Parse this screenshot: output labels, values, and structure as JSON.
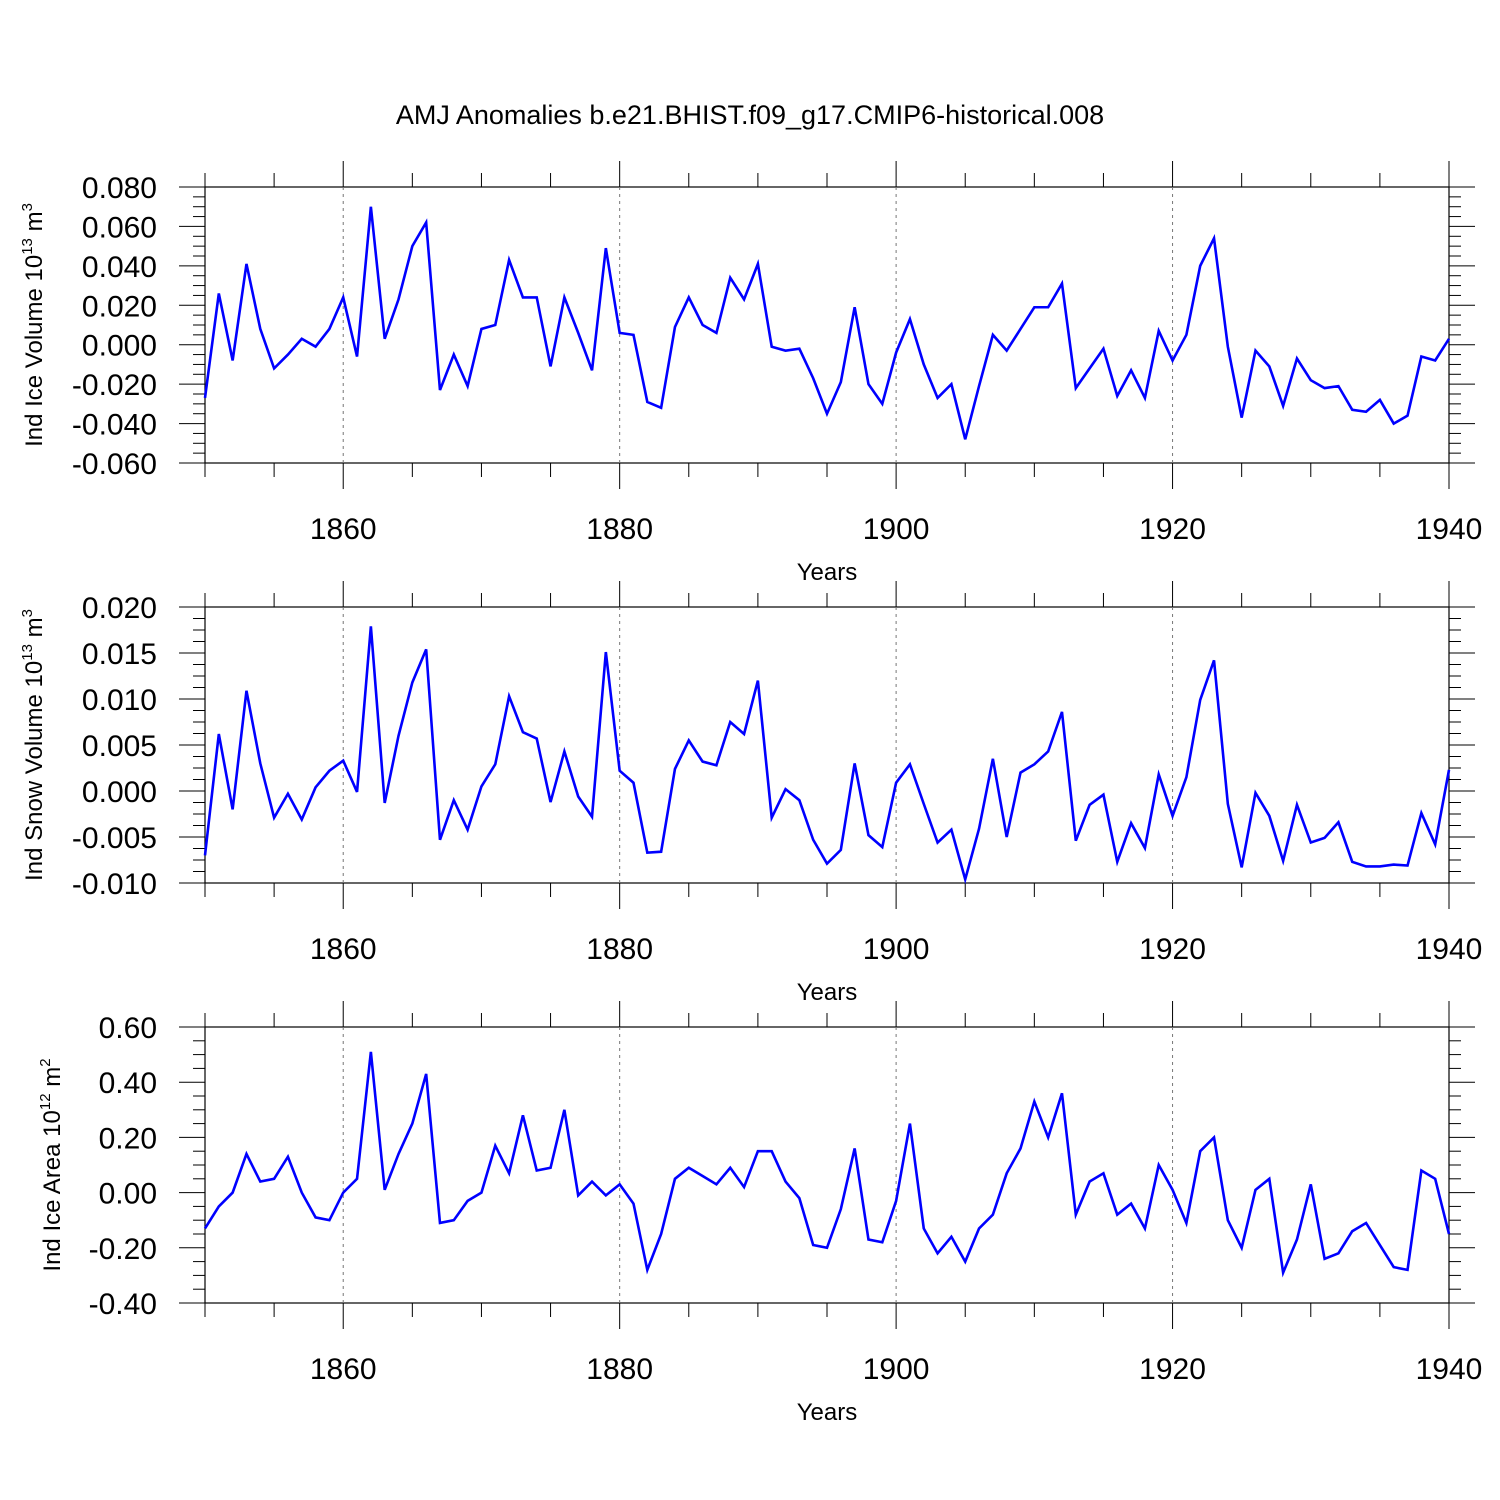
{
  "title": "AMJ Anomalies b.e21.BHIST.f09_g17.CMIP6-historical.008",
  "series_color": "#0000ff",
  "chart_data": [
    {
      "type": "line",
      "ylabel": "Ind Ice Volume",
      "unit_base": "10",
      "unit_exp": "13",
      "unit_name": "m",
      "unit_name_exp": "3",
      "xlabel": "Years",
      "xlim": [
        1850,
        1940
      ],
      "ylim": [
        -0.06,
        0.08
      ],
      "yticks": [
        "-0.060",
        "-0.040",
        "-0.020",
        "0.000",
        "0.020",
        "0.040",
        "0.060",
        "0.080"
      ],
      "ytick_values": [
        -0.06,
        -0.04,
        -0.02,
        0.0,
        0.02,
        0.04,
        0.06,
        0.08
      ],
      "xticks": [
        "1860",
        "1880",
        "1900",
        "1920",
        "1940"
      ],
      "xtick_values": [
        1860,
        1880,
        1900,
        1920,
        1940
      ],
      "x_start": 1850,
      "values": [
        -0.027,
        0.026,
        -0.008,
        0.041,
        0.008,
        -0.012,
        -0.005,
        0.003,
        -0.001,
        0.008,
        0.024,
        -0.006,
        0.07,
        0.003,
        0.023,
        0.05,
        0.062,
        -0.023,
        -0.005,
        -0.021,
        0.008,
        0.01,
        0.043,
        0.024,
        0.024,
        -0.011,
        0.024,
        0.006,
        -0.013,
        0.049,
        0.006,
        0.005,
        -0.029,
        -0.032,
        0.009,
        0.024,
        0.01,
        0.006,
        0.034,
        0.023,
        0.041,
        -0.001,
        -0.003,
        -0.002,
        -0.017,
        -0.035,
        -0.019,
        0.019,
        -0.02,
        -0.03,
        -0.004,
        0.013,
        -0.01,
        -0.027,
        -0.02,
        -0.048,
        -0.021,
        0.005,
        -0.003,
        0.008,
        0.019,
        0.019,
        0.031,
        -0.022,
        -0.012,
        -0.002,
        -0.026,
        -0.013,
        -0.027,
        0.007,
        -0.008,
        0.005,
        0.04,
        0.054,
        -0.001,
        -0.037,
        -0.003,
        -0.011,
        -0.031,
        -0.007,
        -0.018,
        -0.022,
        -0.021,
        -0.033,
        -0.034,
        -0.028,
        -0.04,
        -0.036,
        -0.006,
        -0.008,
        0.003
      ]
    },
    {
      "type": "line",
      "ylabel": "Ind Snow Volume",
      "unit_base": "10",
      "unit_exp": "13",
      "unit_name": "m",
      "unit_name_exp": "3",
      "xlabel": "Years",
      "xlim": [
        1850,
        1940
      ],
      "ylim": [
        -0.01,
        0.02
      ],
      "yticks": [
        "-0.010",
        "-0.005",
        "0.000",
        "0.005",
        "0.010",
        "0.015",
        "0.020"
      ],
      "ytick_values": [
        -0.01,
        -0.005,
        0.0,
        0.005,
        0.01,
        0.015,
        0.02
      ],
      "xticks": [
        "1860",
        "1880",
        "1900",
        "1920",
        "1940"
      ],
      "xtick_values": [
        1860,
        1880,
        1900,
        1920,
        1940
      ],
      "x_start": 1850,
      "values": [
        -0.007,
        0.0062,
        -0.002,
        0.0109,
        0.003,
        -0.0029,
        -0.0003,
        -0.0031,
        0.0004,
        0.0022,
        0.0033,
        -0.0001,
        0.0179,
        -0.0013,
        0.006,
        0.0118,
        0.0154,
        -0.0053,
        -0.001,
        -0.0042,
        0.0005,
        0.0029,
        0.0103,
        0.0064,
        0.0057,
        -0.0012,
        0.0043,
        -0.0006,
        -0.0028,
        0.0151,
        0.0022,
        0.0009,
        -0.0067,
        -0.0066,
        0.0024,
        0.0055,
        0.0032,
        0.0028,
        0.0075,
        0.0062,
        0.012,
        -0.0029,
        0.0002,
        -0.001,
        -0.0053,
        -0.0079,
        -0.0064,
        0.003,
        -0.0048,
        -0.0061,
        0.0009,
        0.0029,
        -0.0014,
        -0.0056,
        -0.0042,
        -0.0096,
        -0.0041,
        0.0035,
        -0.005,
        0.002,
        0.0029,
        0.0043,
        0.0086,
        -0.0054,
        -0.0015,
        -0.0004,
        -0.0077,
        -0.0035,
        -0.0062,
        0.0018,
        -0.0027,
        0.0015,
        0.0099,
        0.0142,
        -0.0014,
        -0.0083,
        -0.0002,
        -0.0027,
        -0.0076,
        -0.0015,
        -0.0056,
        -0.0051,
        -0.0034,
        -0.0077,
        -0.0082,
        -0.0082,
        -0.008,
        -0.0081,
        -0.0024,
        -0.0058,
        0.0023
      ]
    },
    {
      "type": "line",
      "ylabel": "Ind Ice Area",
      "unit_base": "10",
      "unit_exp": "12",
      "unit_name": "m",
      "unit_name_exp": "2",
      "xlabel": "Years",
      "xlim": [
        1850,
        1940
      ],
      "ylim": [
        -0.4,
        0.6
      ],
      "yticks": [
        "-0.40",
        "-0.20",
        "0.00",
        "0.20",
        "0.40",
        "0.60"
      ],
      "ytick_values": [
        -0.4,
        -0.2,
        0.0,
        0.2,
        0.4,
        0.6
      ],
      "xticks": [
        "1860",
        "1880",
        "1900",
        "1920",
        "1940"
      ],
      "xtick_values": [
        1860,
        1880,
        1900,
        1920,
        1940
      ],
      "x_start": 1850,
      "values": [
        -0.13,
        -0.05,
        0.0,
        0.14,
        0.04,
        0.05,
        0.13,
        0.0,
        -0.09,
        -0.1,
        0.0,
        0.05,
        0.51,
        0.01,
        0.14,
        0.25,
        0.43,
        -0.11,
        -0.1,
        -0.03,
        0.0,
        0.17,
        0.07,
        0.28,
        0.08,
        0.09,
        0.3,
        -0.01,
        0.04,
        -0.01,
        0.03,
        -0.04,
        -0.28,
        -0.15,
        0.05,
        0.09,
        0.06,
        0.03,
        0.09,
        0.02,
        0.15,
        0.15,
        0.04,
        -0.02,
        -0.19,
        -0.2,
        -0.06,
        0.16,
        -0.17,
        -0.18,
        -0.03,
        0.25,
        -0.13,
        -0.22,
        -0.16,
        -0.25,
        -0.13,
        -0.08,
        0.07,
        0.16,
        0.33,
        0.2,
        0.36,
        -0.08,
        0.04,
        0.07,
        -0.08,
        -0.04,
        -0.13,
        0.1,
        0.01,
        -0.11,
        0.15,
        0.2,
        -0.1,
        -0.2,
        0.01,
        0.05,
        -0.29,
        -0.17,
        0.03,
        -0.24,
        -0.22,
        -0.14,
        -0.11,
        -0.19,
        -0.27,
        -0.28,
        0.08,
        0.05,
        -0.15
      ]
    }
  ]
}
